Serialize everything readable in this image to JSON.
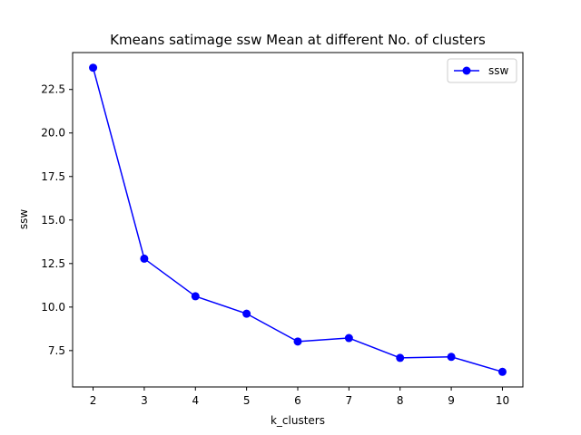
{
  "chart_data": {
    "type": "line",
    "title": "Kmeans satimage ssw Mean at different No. of clusters",
    "xlabel": "k_clusters",
    "ylabel": "ssw",
    "x": [
      2,
      3,
      4,
      5,
      6,
      7,
      8,
      9,
      10
    ],
    "series": [
      {
        "name": "ssw",
        "values": [
          23.75,
          12.78,
          10.62,
          9.62,
          8.02,
          8.22,
          7.08,
          7.14,
          6.28
        ],
        "color": "#0000ff",
        "marker": "circle"
      }
    ],
    "xlim": [
      1.6,
      10.4
    ],
    "ylim": [
      5.41,
      24.62
    ],
    "xticks": [
      "2",
      "3",
      "4",
      "5",
      "6",
      "7",
      "8",
      "9",
      "10"
    ],
    "yticks": [
      "7.5",
      "10.0",
      "12.5",
      "15.0",
      "17.5",
      "20.0",
      "22.5"
    ],
    "legend": {
      "position": "top-right",
      "entries": [
        "ssw"
      ]
    },
    "grid": false
  }
}
